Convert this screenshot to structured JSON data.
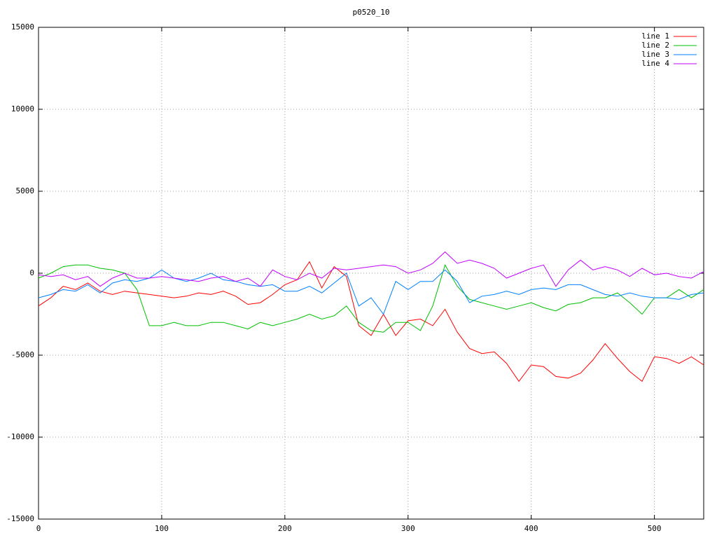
{
  "chart_data": {
    "type": "line",
    "title": "p0520_10",
    "x": [
      0,
      10,
      20,
      30,
      40,
      50,
      60,
      70,
      80,
      90,
      100,
      110,
      120,
      130,
      140,
      150,
      160,
      170,
      180,
      190,
      200,
      210,
      220,
      230,
      240,
      250,
      260,
      270,
      280,
      290,
      300,
      310,
      320,
      330,
      340,
      350,
      360,
      370,
      380,
      390,
      400,
      410,
      420,
      430,
      440,
      450,
      460,
      470,
      480,
      490,
      500,
      510,
      520,
      530,
      540
    ],
    "series": [
      {
        "name": "line 1",
        "color": "#ff0000",
        "values": [
          -2000,
          -1500,
          -800,
          -1000,
          -600,
          -1100,
          -1300,
          -1100,
          -1200,
          -1300,
          -1400,
          -1500,
          -1400,
          -1200,
          -1300,
          -1100,
          -1400,
          -1900,
          -1800,
          -1300,
          -700,
          -400,
          700,
          -900,
          400,
          -200,
          -3200,
          -3800,
          -2500,
          -3800,
          -2900,
          -2800,
          -3200,
          -2200,
          -3600,
          -4600,
          -4900,
          -4800,
          -5500,
          -6600,
          -5600,
          -5700,
          -6300,
          -6400,
          -6100,
          -5300,
          -4300,
          -5200,
          -6000,
          -6600,
          -5100,
          -5200,
          -5500,
          -5100,
          -5600
        ]
      },
      {
        "name": "line 2",
        "color": "#00c000",
        "values": [
          -300,
          0,
          400,
          500,
          500,
          300,
          200,
          0,
          -1000,
          -3200,
          -3200,
          -3000,
          -3200,
          -3200,
          -3000,
          -3000,
          -3200,
          -3400,
          -3000,
          -3200,
          -3000,
          -2800,
          -2500,
          -2800,
          -2600,
          -2000,
          -3000,
          -3500,
          -3600,
          -3000,
          -3000,
          -3500,
          -2000,
          500,
          -800,
          -1600,
          -1800,
          -2000,
          -2200,
          -2000,
          -1800,
          -2100,
          -2300,
          -1900,
          -1800,
          -1500,
          -1500,
          -1200,
          -1800,
          -2500,
          -1500,
          -1500,
          -1000,
          -1500,
          -1000
        ]
      },
      {
        "name": "line 3",
        "color": "#0080ff",
        "values": [
          -1500,
          -1300,
          -1000,
          -1100,
          -700,
          -1200,
          -600,
          -400,
          -500,
          -300,
          200,
          -300,
          -500,
          -300,
          0,
          -400,
          -500,
          -700,
          -800,
          -700,
          -1100,
          -1100,
          -800,
          -1200,
          -600,
          0,
          -2000,
          -1500,
          -2500,
          -500,
          -1000,
          -500,
          -500,
          200,
          -500,
          -1800,
          -1400,
          -1300,
          -1100,
          -1300,
          -1000,
          -900,
          -1000,
          -700,
          -700,
          -1000,
          -1300,
          -1400,
          -1200,
          -1400,
          -1500,
          -1500,
          -1600,
          -1300,
          -1200
        ]
      },
      {
        "name": "line 4",
        "color": "#c000ff",
        "values": [
          -100,
          -200,
          -100,
          -400,
          -200,
          -800,
          -300,
          0,
          -300,
          -300,
          -200,
          -300,
          -400,
          -500,
          -300,
          -200,
          -500,
          -300,
          -800,
          200,
          -200,
          -400,
          0,
          -300,
          300,
          200,
          300,
          400,
          500,
          400,
          0,
          200,
          600,
          1300,
          600,
          800,
          600,
          300,
          -300,
          0,
          300,
          500,
          -800,
          200,
          800,
          200,
          400,
          200,
          -200,
          300,
          -100,
          0,
          -200,
          -300,
          100
        ]
      }
    ],
    "xlim": [
      0,
      540
    ],
    "xticks": [
      0,
      100,
      200,
      300,
      400,
      500
    ],
    "ylim": [
      -15000,
      15000
    ],
    "yticks": [
      -15000,
      -10000,
      -5000,
      0,
      5000,
      10000,
      15000
    ],
    "grid": true,
    "legend": "top-right"
  }
}
